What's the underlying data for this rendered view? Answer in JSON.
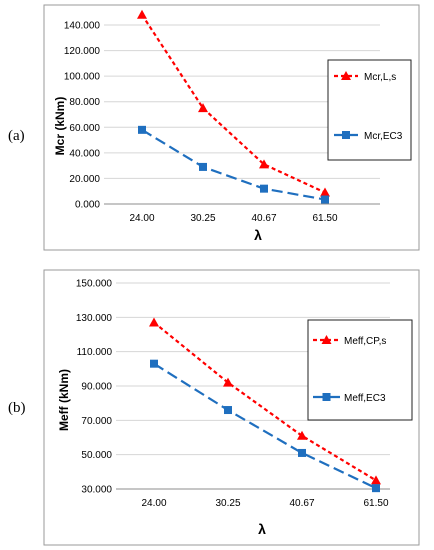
{
  "chart_data": [
    {
      "type": "line",
      "panel_label": "(a)",
      "categories": [
        "24.00",
        "30.25",
        "40.67",
        "61.50"
      ],
      "xlabel": "λ",
      "ylabel": "Mcr (kNm)",
      "ylim": [
        0,
        140
      ],
      "yticks": [
        "0.000",
        "20.000",
        "40.000",
        "60.000",
        "80.000",
        "100.000",
        "120.000",
        "140.000"
      ],
      "grid": "horizontal",
      "legend_position": "right",
      "series": [
        {
          "name": "Mcr,L,s",
          "values": [
            148,
            75,
            31,
            9
          ],
          "color": "#ff0000",
          "marker": "triangle",
          "dash": "short"
        },
        {
          "name": "Mcr,EC3",
          "values": [
            58,
            29,
            12,
            3.5
          ],
          "color": "#1f6fbf",
          "marker": "square",
          "dash": "long"
        }
      ]
    },
    {
      "type": "line",
      "panel_label": "(b)",
      "categories": [
        "24.00",
        "30.25",
        "40.67",
        "61.50"
      ],
      "xlabel": "λ",
      "ylabel": "Meff (kNm)",
      "ylim": [
        30,
        150
      ],
      "yticks": [
        "30.000",
        "50.000",
        "70.000",
        "90.000",
        "110.000",
        "130.000",
        "150.000"
      ],
      "grid": "horizontal",
      "legend_position": "right",
      "series": [
        {
          "name": "Meff,CP,s",
          "values": [
            127,
            92,
            61,
            35
          ],
          "color": "#ff0000",
          "marker": "triangle",
          "dash": "short"
        },
        {
          "name": "Meff,EC3",
          "values": [
            103,
            76,
            51,
            30.5
          ],
          "color": "#1f6fbf",
          "marker": "square",
          "dash": "long"
        }
      ]
    }
  ]
}
